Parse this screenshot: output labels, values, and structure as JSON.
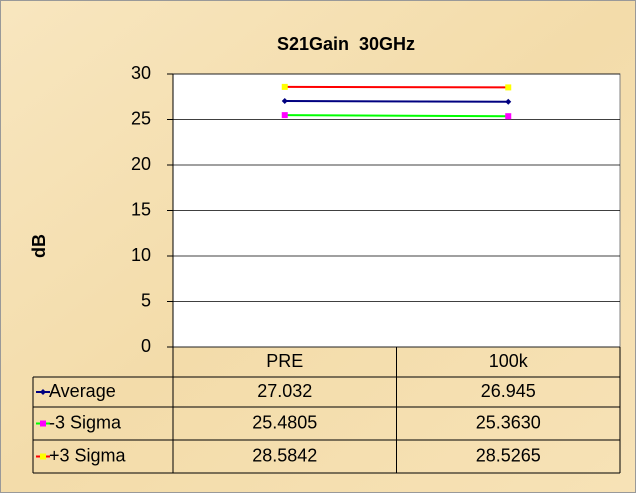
{
  "chart_data": {
    "type": "line",
    "title": "S21Gain  30GHz",
    "y_label": "dB",
    "categories": [
      "PRE",
      "100k"
    ],
    "series": [
      {
        "name": "Average",
        "color": "#000080",
        "marker_color": "#000080",
        "marker": "diamond",
        "values": [
          27.032,
          26.945
        ]
      },
      {
        "name": "-3 Sigma",
        "color": "#00ff00",
        "marker_color": "#ff00ff",
        "marker": "square",
        "values": [
          25.4805,
          25.363
        ],
        "value_labels": [
          "25.4805",
          "25.3630"
        ]
      },
      {
        "name": "+3 Sigma",
        "color": "#ff0000",
        "marker_color": "#ffff00",
        "marker": "square",
        "values": [
          28.5842,
          28.5265
        ]
      }
    ],
    "ylim": [
      0,
      30
    ],
    "yticks": [
      0,
      5,
      10,
      15,
      20,
      25,
      30
    ],
    "grid": true,
    "data_table": true
  }
}
